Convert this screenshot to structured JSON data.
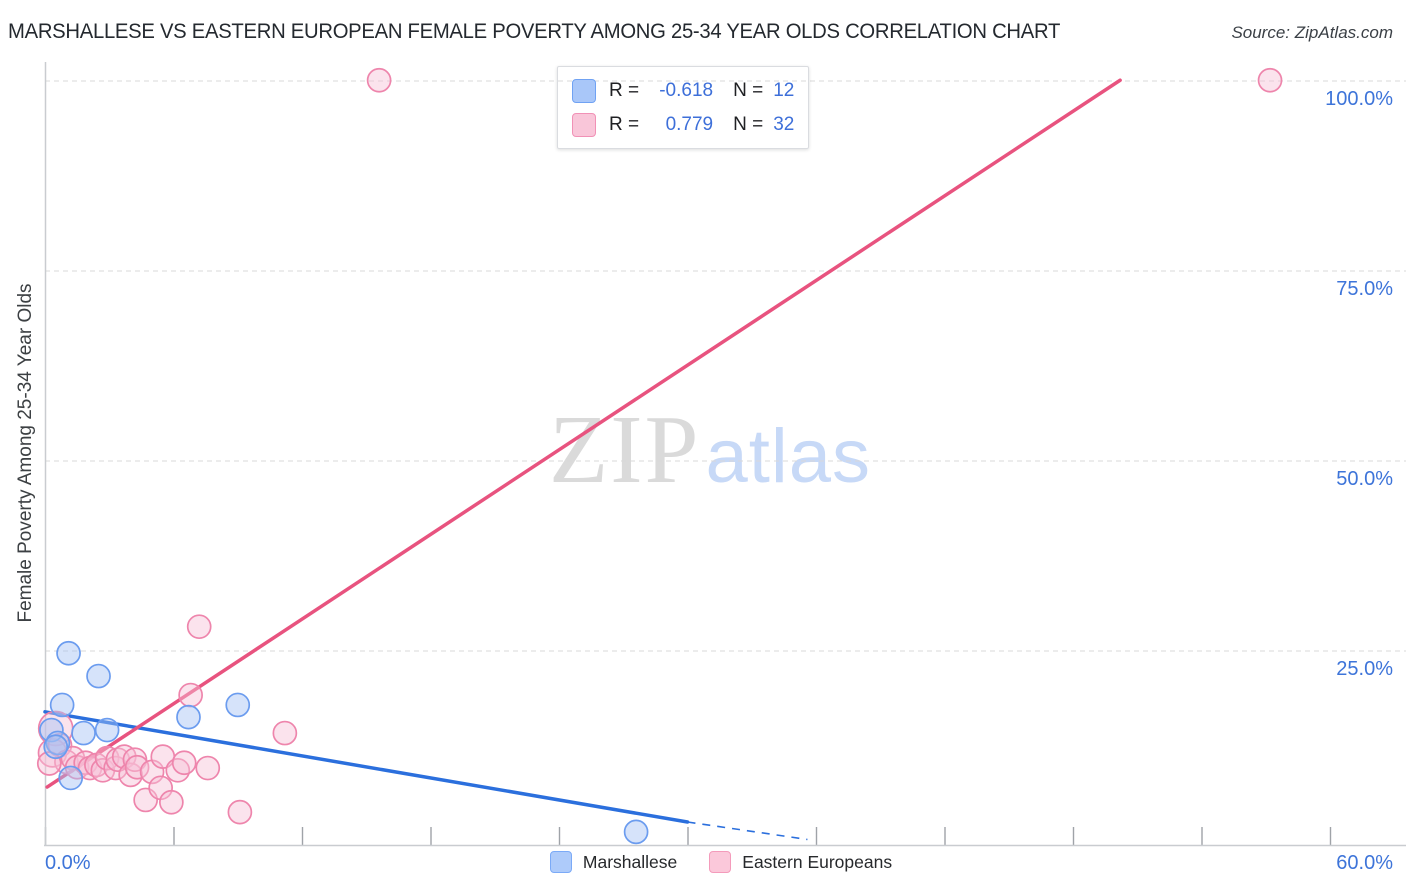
{
  "header": {
    "title": "MARSHALLESE VS EASTERN EUROPEAN FEMALE POVERTY AMONG 25-34 YEAR OLDS CORRELATION CHART",
    "source": "Source: ZipAtlas.com"
  },
  "watermark": {
    "zip": "ZIP",
    "atlas": "atlas"
  },
  "correlation_legend": {
    "rows": [
      {
        "series": "Marshallese",
        "r_label": "R =",
        "r": "-0.618",
        "n_label": "N =",
        "n": "12"
      },
      {
        "series": "Eastern Europeans",
        "r_label": "R =",
        "r": "0.779",
        "n_label": "N =",
        "n": "32"
      }
    ]
  },
  "bottom_legend": {
    "items": [
      {
        "label": "Marshallese",
        "swatch_fill": "#aecbfa",
        "swatch_border": "#7baaf7"
      },
      {
        "label": "Eastern Europeans",
        "swatch_fill": "#fbc8da",
        "swatch_border": "#f49bbb"
      }
    ]
  },
  "chart_data": {
    "type": "scatter",
    "title": "Marshallese vs Eastern European Female Poverty Among 25-34 Year Olds",
    "grid": "dashed horizontal gridlines at 25/50/75/100",
    "legend_position": "top-center box and bottom-center swatches",
    "x_axis": {
      "min": 0,
      "max": 60,
      "tick_step": 6,
      "label_min": "0.0%",
      "label_max": "60.0%",
      "labels_color": "#3d74d9"
    },
    "y_axis": {
      "label": "Female Poverty Among 25-34 Year Olds",
      "min": 0,
      "max": 105,
      "gridlines": [
        100,
        75,
        50,
        25
      ],
      "tick_labels": [
        "100.0%",
        "75.0%",
        "50.0%",
        "25.0%"
      ],
      "labels_color": "#3d74d9"
    },
    "series": [
      {
        "name": "Eastern Europeans",
        "R": 0.779,
        "N": 32,
        "fill": "#f7c2d7",
        "stroke": "#ee85ac",
        "points": [
          [
            0.5,
            14.8,
            17
          ],
          [
            0.35,
            11.6,
            14
          ],
          [
            0.7,
            12.6
          ],
          [
            1.0,
            10.4
          ],
          [
            1.3,
            10.9
          ],
          [
            1.5,
            9.7
          ],
          [
            1.9,
            10.3
          ],
          [
            2.1,
            9.6
          ],
          [
            2.4,
            10.0
          ],
          [
            2.7,
            9.3
          ],
          [
            2.9,
            10.9
          ],
          [
            3.3,
            9.6
          ],
          [
            3.4,
            10.7
          ],
          [
            3.7,
            11.1
          ],
          [
            4.0,
            8.7
          ],
          [
            4.2,
            10.7
          ],
          [
            4.3,
            9.7
          ],
          [
            5.0,
            9.1
          ],
          [
            5.5,
            11.1
          ],
          [
            6.2,
            9.3
          ],
          [
            6.5,
            10.3
          ],
          [
            7.6,
            9.6
          ],
          [
            4.7,
            5.4
          ],
          [
            5.4,
            7.0
          ],
          [
            5.9,
            5.1
          ],
          [
            9.1,
            3.8
          ],
          [
            6.8,
            19.2
          ],
          [
            7.2,
            28.2
          ],
          [
            11.2,
            14.2
          ],
          [
            15.6,
            100.1
          ],
          [
            57.2,
            100.1
          ],
          [
            0.2,
            10.2
          ]
        ]
      },
      {
        "name": "Marshallese",
        "R": -0.618,
        "N": 12,
        "fill": "#a4c2f4",
        "stroke": "#6b9cef",
        "points": [
          [
            1.1,
            24.7
          ],
          [
            2.5,
            21.7
          ],
          [
            0.8,
            17.9
          ],
          [
            0.3,
            14.6
          ],
          [
            0.6,
            12.9
          ],
          [
            1.8,
            14.2
          ],
          [
            2.9,
            14.6
          ],
          [
            0.5,
            12.4
          ],
          [
            1.2,
            8.3
          ],
          [
            6.7,
            16.3
          ],
          [
            9.0,
            17.9
          ],
          [
            27.6,
            1.2
          ]
        ]
      }
    ],
    "trend_lines": [
      {
        "series": "Marshallese",
        "color": "#2b6fdd",
        "solid": [
          [
            0,
            17.0
          ],
          [
            30,
            2.5
          ]
        ],
        "dashed": [
          [
            30,
            2.5
          ],
          [
            35.6,
            0.2
          ]
        ]
      },
      {
        "series": "Eastern Europeans",
        "color": "#e8537f",
        "solid": [
          [
            0.1,
            7.1
          ],
          [
            50.2,
            100.1
          ]
        ]
      }
    ]
  }
}
